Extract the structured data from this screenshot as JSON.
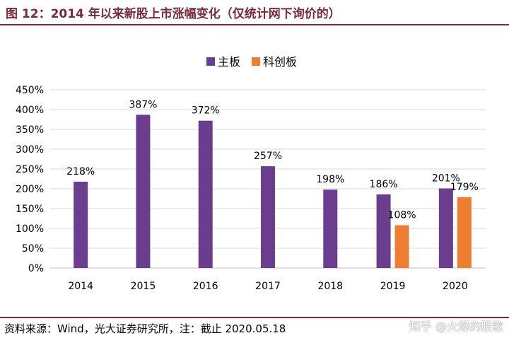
{
  "header": {
    "title": "图 12：2014 年以来新股上市涨幅变化（仅统计网下询价的）"
  },
  "footer": {
    "source": "资料来源：Wind，光大证券研究所，注：截止 2020.05.18",
    "watermark": "知乎 @火爆的股歌"
  },
  "colors": {
    "main_board": "#6b3d8f",
    "star_market": "#ed7d31",
    "accent": "#7a2a3a",
    "grid": "#d9d9d9"
  },
  "chart_data": {
    "type": "bar",
    "title": "",
    "xlabel": "",
    "ylabel": "",
    "categories": [
      "2014",
      "2015",
      "2016",
      "2017",
      "2018",
      "2019",
      "2020"
    ],
    "series": [
      {
        "name": "主板",
        "color": "#6b3d8f",
        "values": [
          218,
          387,
          372,
          257,
          198,
          186,
          201
        ],
        "labels": [
          "218%",
          "387%",
          "372%",
          "257%",
          "198%",
          "186%",
          "201%"
        ]
      },
      {
        "name": "科创板",
        "color": "#ed7d31",
        "values": [
          null,
          null,
          null,
          null,
          null,
          108,
          179
        ],
        "labels": [
          "",
          "",
          "",
          "",
          "",
          "108%",
          "179%"
        ]
      }
    ],
    "ylim": [
      0,
      450
    ],
    "yticks": [
      "0%",
      "50%",
      "100%",
      "150%",
      "200%",
      "250%",
      "300%",
      "350%",
      "400%",
      "450%"
    ],
    "grid": true,
    "legend_position": "top-center"
  }
}
